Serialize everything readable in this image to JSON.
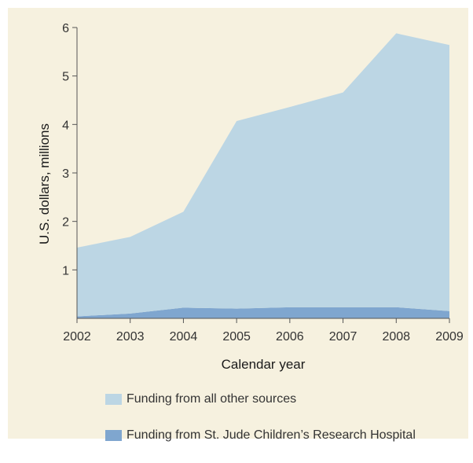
{
  "chart_data": {
    "type": "area",
    "stacked": true,
    "title": "",
    "xlabel": "Calendar year",
    "ylabel": "U.S. dollars, millions",
    "x": [
      "2002",
      "2003",
      "2004",
      "2005",
      "2006",
      "2007",
      "2008",
      "2009"
    ],
    "ylim": [
      0,
      6
    ],
    "y_ticks": [
      "1",
      "2",
      "3",
      "4",
      "5",
      "6"
    ],
    "grid": false,
    "legend_position": "bottom",
    "series": [
      {
        "name": "Funding from St. Jude Children’s Research Hospital",
        "color": "#7fa6cf",
        "values": [
          0.04,
          0.1,
          0.22,
          0.2,
          0.23,
          0.23,
          0.23,
          0.15
        ]
      },
      {
        "name": "Funding from all other sources",
        "color": "#bcd6e4",
        "values": [
          1.42,
          1.58,
          1.98,
          3.87,
          4.13,
          4.43,
          5.65,
          5.49
        ]
      }
    ],
    "legend_order": [
      1,
      0
    ],
    "background_color": "#f6f1df",
    "axis_color": "#555555"
  }
}
